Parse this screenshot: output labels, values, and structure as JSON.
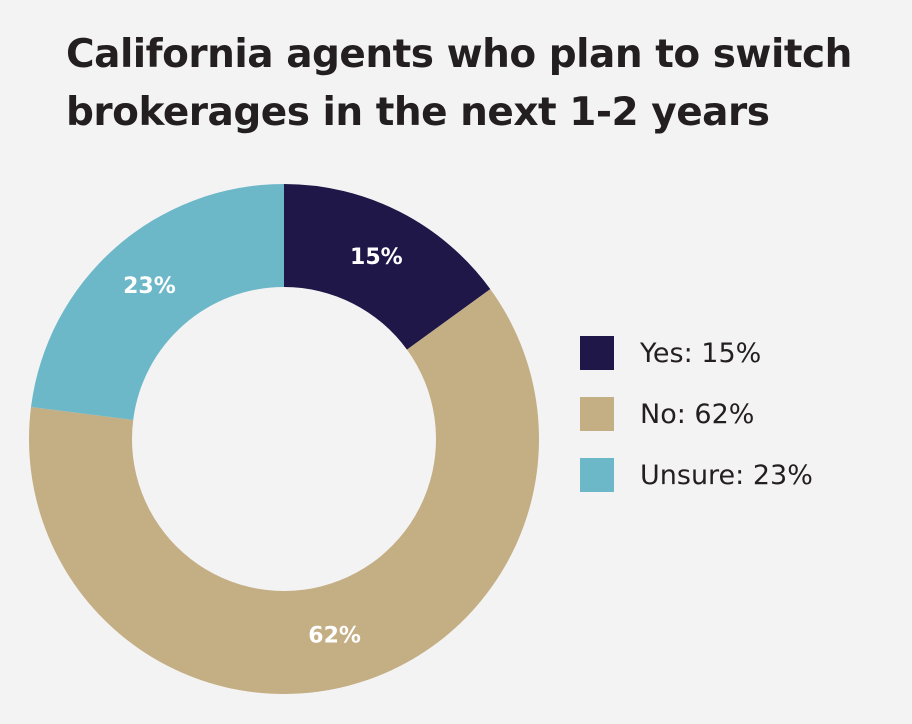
{
  "chart_data": {
    "type": "pie",
    "title": "California agents who plan to switch brokerages in the next 1-2 years",
    "title_lines": [
      "California agents who plan to switch",
      "brokerages in the next 1-2 years"
    ],
    "donut": true,
    "categories": [
      "Yes",
      "No",
      "Unsure"
    ],
    "values": [
      15,
      62,
      23
    ],
    "unit": "%",
    "colors": [
      "#1e1747",
      "#c4ae84",
      "#6cb8c8"
    ],
    "data_labels": [
      "15%",
      "62%",
      "23%"
    ],
    "legend_position": "right",
    "legend_labels": [
      "Yes: 15%",
      "No: 62%",
      "Unsure: 23%"
    ]
  }
}
